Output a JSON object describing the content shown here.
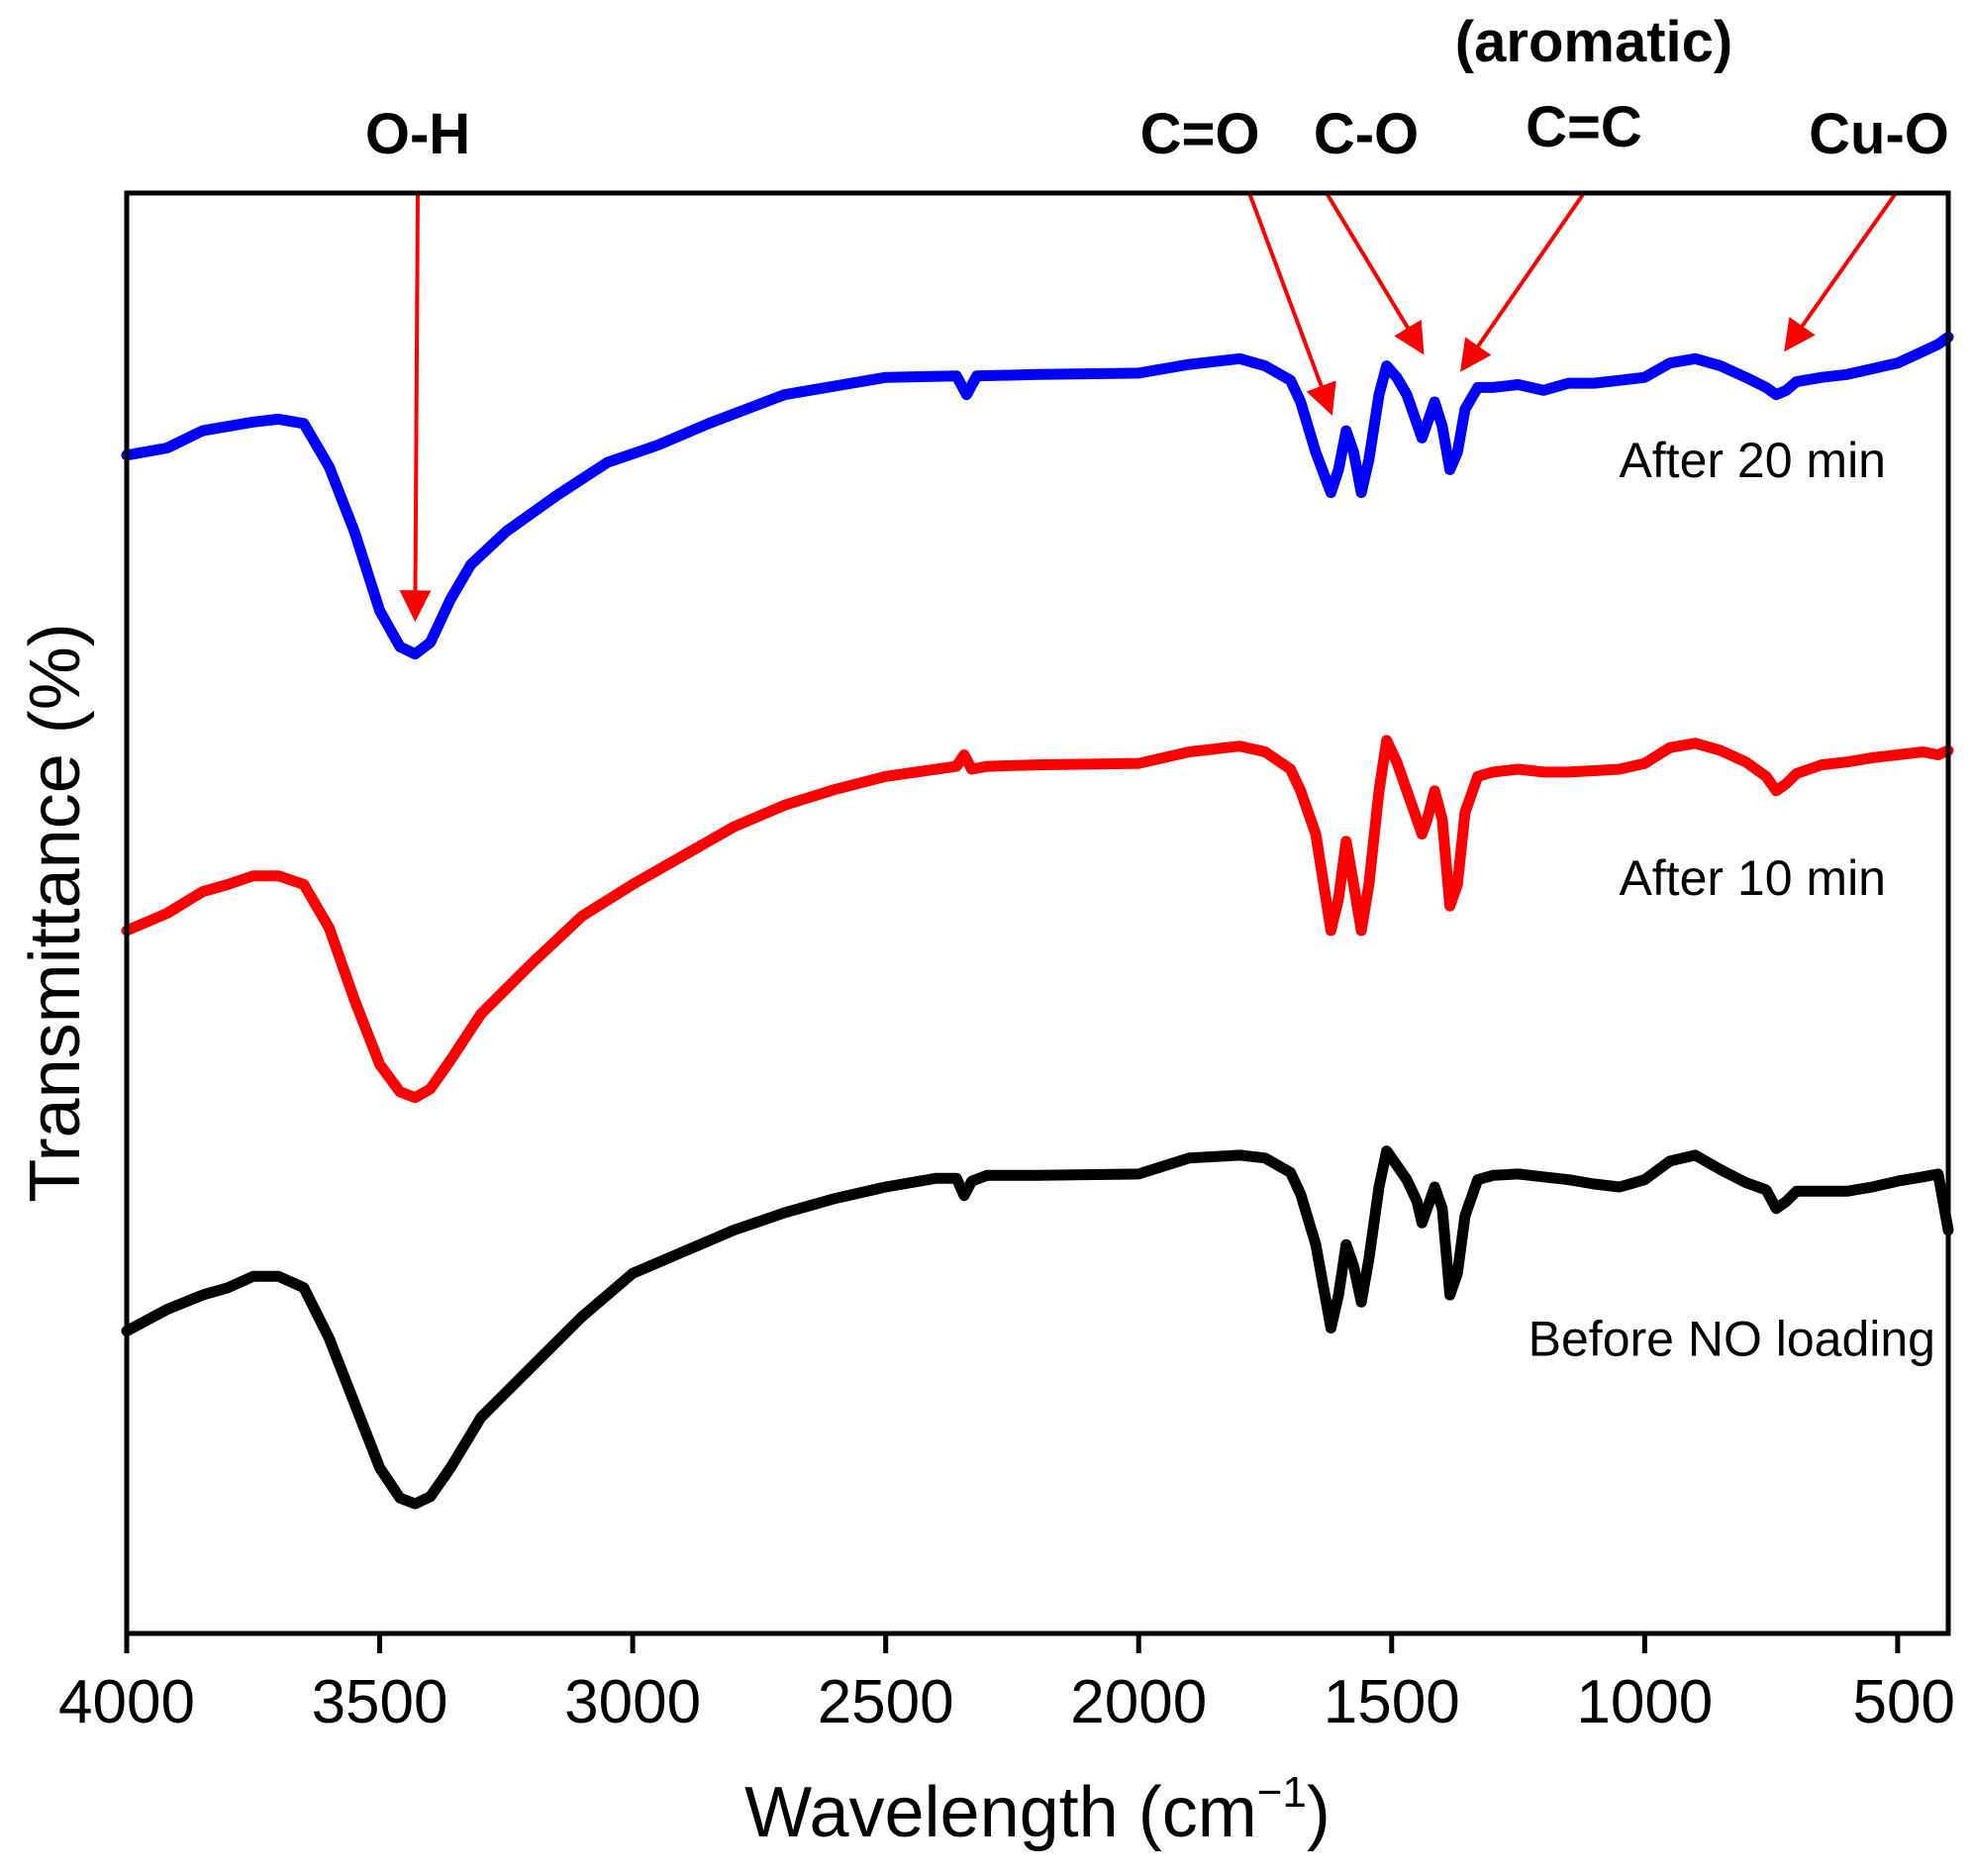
{
  "chart_data": {
    "type": "line",
    "xlabel": "Wavelength (cm",
    "xlabel_sup": "−1",
    "xlabel_close": ")",
    "ylabel": "Transmittance (%)",
    "xlim": [
      4000,
      400
    ],
    "ylim": [
      0,
      100
    ],
    "x_reversed": true,
    "xticks": [
      4000,
      3500,
      3000,
      2500,
      2000,
      1500,
      1000,
      500
    ],
    "xtick_labels": [
      "4000",
      "3500",
      "3000",
      "2500",
      "2000",
      "1500",
      "1000",
      "500"
    ],
    "grid": false,
    "series": [
      {
        "name": "After 20 min",
        "color": "#0000ff",
        "points": [
          [
            4000,
            81.8
          ],
          [
            3920,
            82.3
          ],
          [
            3850,
            83.5
          ],
          [
            3800,
            83.8
          ],
          [
            3750,
            84.1
          ],
          [
            3700,
            84.3
          ],
          [
            3650,
            84.0
          ],
          [
            3600,
            81.0
          ],
          [
            3550,
            76.5
          ],
          [
            3500,
            71.0
          ],
          [
            3460,
            68.5
          ],
          [
            3430,
            68.0
          ],
          [
            3400,
            68.8
          ],
          [
            3360,
            71.8
          ],
          [
            3320,
            74.2
          ],
          [
            3250,
            76.5
          ],
          [
            3150,
            79.0
          ],
          [
            3050,
            81.3
          ],
          [
            2950,
            82.5
          ],
          [
            2850,
            84.0
          ],
          [
            2700,
            86.0
          ],
          [
            2500,
            87.2
          ],
          [
            2360,
            87.3
          ],
          [
            2340,
            86.0
          ],
          [
            2320,
            87.3
          ],
          [
            2200,
            87.4
          ],
          [
            2000,
            87.5
          ],
          [
            1900,
            88.1
          ],
          [
            1800,
            88.5
          ],
          [
            1750,
            88.0
          ],
          [
            1700,
            87.0
          ],
          [
            1680,
            85.5
          ],
          [
            1650,
            82.0
          ],
          [
            1620,
            79.2
          ],
          [
            1605,
            80.8
          ],
          [
            1590,
            83.5
          ],
          [
            1575,
            82.0
          ],
          [
            1560,
            79.2
          ],
          [
            1545,
            81.5
          ],
          [
            1525,
            86.0
          ],
          [
            1510,
            88.0
          ],
          [
            1490,
            87.2
          ],
          [
            1470,
            86.0
          ],
          [
            1450,
            84.0
          ],
          [
            1440,
            83.0
          ],
          [
            1430,
            84.0
          ],
          [
            1415,
            85.5
          ],
          [
            1400,
            83.8
          ],
          [
            1385,
            80.8
          ],
          [
            1370,
            82.0
          ],
          [
            1355,
            85.0
          ],
          [
            1330,
            86.5
          ],
          [
            1300,
            86.5
          ],
          [
            1250,
            86.7
          ],
          [
            1200,
            86.3
          ],
          [
            1150,
            86.8
          ],
          [
            1100,
            86.8
          ],
          [
            1050,
            87.0
          ],
          [
            1000,
            87.2
          ],
          [
            950,
            88.2
          ],
          [
            900,
            88.5
          ],
          [
            850,
            88.0
          ],
          [
            800,
            87.2
          ],
          [
            760,
            86.5
          ],
          [
            740,
            86.0
          ],
          [
            720,
            86.3
          ],
          [
            700,
            86.9
          ],
          [
            650,
            87.2
          ],
          [
            600,
            87.4
          ],
          [
            550,
            87.8
          ],
          [
            500,
            88.2
          ],
          [
            450,
            89.0
          ],
          [
            420,
            89.5
          ],
          [
            400,
            90.0
          ]
        ]
      },
      {
        "name": "After 10 min",
        "color": "#ff0000",
        "points": [
          [
            4000,
            48.8
          ],
          [
            3920,
            50.0
          ],
          [
            3850,
            51.5
          ],
          [
            3800,
            52.0
          ],
          [
            3750,
            52.6
          ],
          [
            3700,
            52.6
          ],
          [
            3650,
            52.0
          ],
          [
            3600,
            49.0
          ],
          [
            3550,
            44.0
          ],
          [
            3500,
            39.5
          ],
          [
            3460,
            37.6
          ],
          [
            3430,
            37.2
          ],
          [
            3400,
            37.8
          ],
          [
            3360,
            39.8
          ],
          [
            3300,
            43.0
          ],
          [
            3200,
            46.5
          ],
          [
            3100,
            49.8
          ],
          [
            3000,
            52.0
          ],
          [
            2900,
            54.0
          ],
          [
            2800,
            56.0
          ],
          [
            2700,
            57.5
          ],
          [
            2600,
            58.6
          ],
          [
            2500,
            59.5
          ],
          [
            2400,
            60.0
          ],
          [
            2360,
            60.2
          ],
          [
            2345,
            61.0
          ],
          [
            2330,
            60.0
          ],
          [
            2300,
            60.2
          ],
          [
            2200,
            60.3
          ],
          [
            2000,
            60.4
          ],
          [
            1900,
            61.2
          ],
          [
            1800,
            61.6
          ],
          [
            1750,
            61.2
          ],
          [
            1700,
            60.0
          ],
          [
            1680,
            58.5
          ],
          [
            1650,
            55.5
          ],
          [
            1620,
            48.8
          ],
          [
            1605,
            51.0
          ],
          [
            1590,
            55.0
          ],
          [
            1575,
            52.0
          ],
          [
            1560,
            48.8
          ],
          [
            1545,
            52.0
          ],
          [
            1525,
            58.5
          ],
          [
            1510,
            62.0
          ],
          [
            1490,
            60.5
          ],
          [
            1470,
            58.5
          ],
          [
            1450,
            56.5
          ],
          [
            1440,
            55.5
          ],
          [
            1430,
            56.5
          ],
          [
            1415,
            58.5
          ],
          [
            1400,
            56.5
          ],
          [
            1385,
            50.5
          ],
          [
            1370,
            52.0
          ],
          [
            1355,
            57.0
          ],
          [
            1330,
            59.5
          ],
          [
            1300,
            59.8
          ],
          [
            1250,
            60.0
          ],
          [
            1200,
            59.8
          ],
          [
            1150,
            59.8
          ],
          [
            1100,
            59.9
          ],
          [
            1050,
            60.0
          ],
          [
            1000,
            60.4
          ],
          [
            950,
            61.5
          ],
          [
            900,
            61.8
          ],
          [
            850,
            61.3
          ],
          [
            800,
            60.5
          ],
          [
            760,
            59.5
          ],
          [
            740,
            58.5
          ],
          [
            720,
            59.0
          ],
          [
            700,
            59.7
          ],
          [
            650,
            60.3
          ],
          [
            600,
            60.5
          ],
          [
            550,
            60.8
          ],
          [
            500,
            61.0
          ],
          [
            450,
            61.2
          ],
          [
            420,
            61.0
          ],
          [
            400,
            61.3
          ]
        ]
      },
      {
        "name": "Before NO loading",
        "color": "#000000",
        "points": [
          [
            4000,
            21.0
          ],
          [
            3920,
            22.5
          ],
          [
            3850,
            23.5
          ],
          [
            3800,
            24.0
          ],
          [
            3750,
            24.8
          ],
          [
            3700,
            24.8
          ],
          [
            3650,
            24.0
          ],
          [
            3600,
            20.5
          ],
          [
            3550,
            16.0
          ],
          [
            3500,
            11.5
          ],
          [
            3460,
            9.4
          ],
          [
            3430,
            9.0
          ],
          [
            3400,
            9.5
          ],
          [
            3360,
            11.5
          ],
          [
            3300,
            15.0
          ],
          [
            3200,
            18.5
          ],
          [
            3100,
            22.0
          ],
          [
            3000,
            25.0
          ],
          [
            2900,
            26.5
          ],
          [
            2800,
            28.0
          ],
          [
            2700,
            29.2
          ],
          [
            2600,
            30.2
          ],
          [
            2500,
            31.0
          ],
          [
            2400,
            31.6
          ],
          [
            2360,
            31.6
          ],
          [
            2345,
            30.4
          ],
          [
            2330,
            31.4
          ],
          [
            2300,
            31.8
          ],
          [
            2200,
            31.8
          ],
          [
            2000,
            31.9
          ],
          [
            1900,
            33.0
          ],
          [
            1800,
            33.2
          ],
          [
            1750,
            33.0
          ],
          [
            1700,
            32.0
          ],
          [
            1680,
            30.5
          ],
          [
            1650,
            27.0
          ],
          [
            1620,
            21.2
          ],
          [
            1605,
            23.5
          ],
          [
            1590,
            27.0
          ],
          [
            1575,
            25.5
          ],
          [
            1560,
            23.0
          ],
          [
            1545,
            26.0
          ],
          [
            1525,
            31.0
          ],
          [
            1510,
            33.5
          ],
          [
            1490,
            32.5
          ],
          [
            1470,
            31.5
          ],
          [
            1450,
            30.0
          ],
          [
            1440,
            28.5
          ],
          [
            1430,
            29.5
          ],
          [
            1415,
            31.0
          ],
          [
            1400,
            29.5
          ],
          [
            1385,
            23.5
          ],
          [
            1370,
            25.0
          ],
          [
            1355,
            29.0
          ],
          [
            1330,
            31.5
          ],
          [
            1300,
            31.8
          ],
          [
            1250,
            31.9
          ],
          [
            1200,
            31.7
          ],
          [
            1150,
            31.5
          ],
          [
            1100,
            31.2
          ],
          [
            1050,
            31.0
          ],
          [
            1000,
            31.5
          ],
          [
            950,
            32.8
          ],
          [
            900,
            33.2
          ],
          [
            850,
            32.2
          ],
          [
            800,
            31.3
          ],
          [
            760,
            30.8
          ],
          [
            740,
            29.5
          ],
          [
            720,
            30.0
          ],
          [
            700,
            30.7
          ],
          [
            650,
            30.7
          ],
          [
            600,
            30.7
          ],
          [
            550,
            31.0
          ],
          [
            500,
            31.4
          ],
          [
            450,
            31.7
          ],
          [
            420,
            31.9
          ],
          [
            400,
            28.0
          ]
        ]
      }
    ],
    "series_labels": [
      {
        "text": "After 20 min",
        "x": 1405,
        "y": 81.5
      },
      {
        "text": "After 10 min",
        "x": 1405,
        "y": 52.5
      },
      {
        "text": "Before NO loading",
        "x": 1405,
        "y": 20.5
      }
    ],
    "annotations": [
      {
        "label": "O-H",
        "target_x": 3430,
        "target_y": 70.5
      },
      {
        "label": "C=O",
        "target_x": 1620,
        "target_y": 84.8
      },
      {
        "label": "C-O",
        "target_x": 1440,
        "target_y": 89.0
      },
      {
        "label": "(aromatic)",
        "target_x": null,
        "target_y": null
      },
      {
        "label": "C=C",
        "target_x": 1360,
        "target_y": 87.8
      },
      {
        "label": "Cu-O",
        "target_x": 720,
        "target_y": 89.2
      }
    ]
  }
}
